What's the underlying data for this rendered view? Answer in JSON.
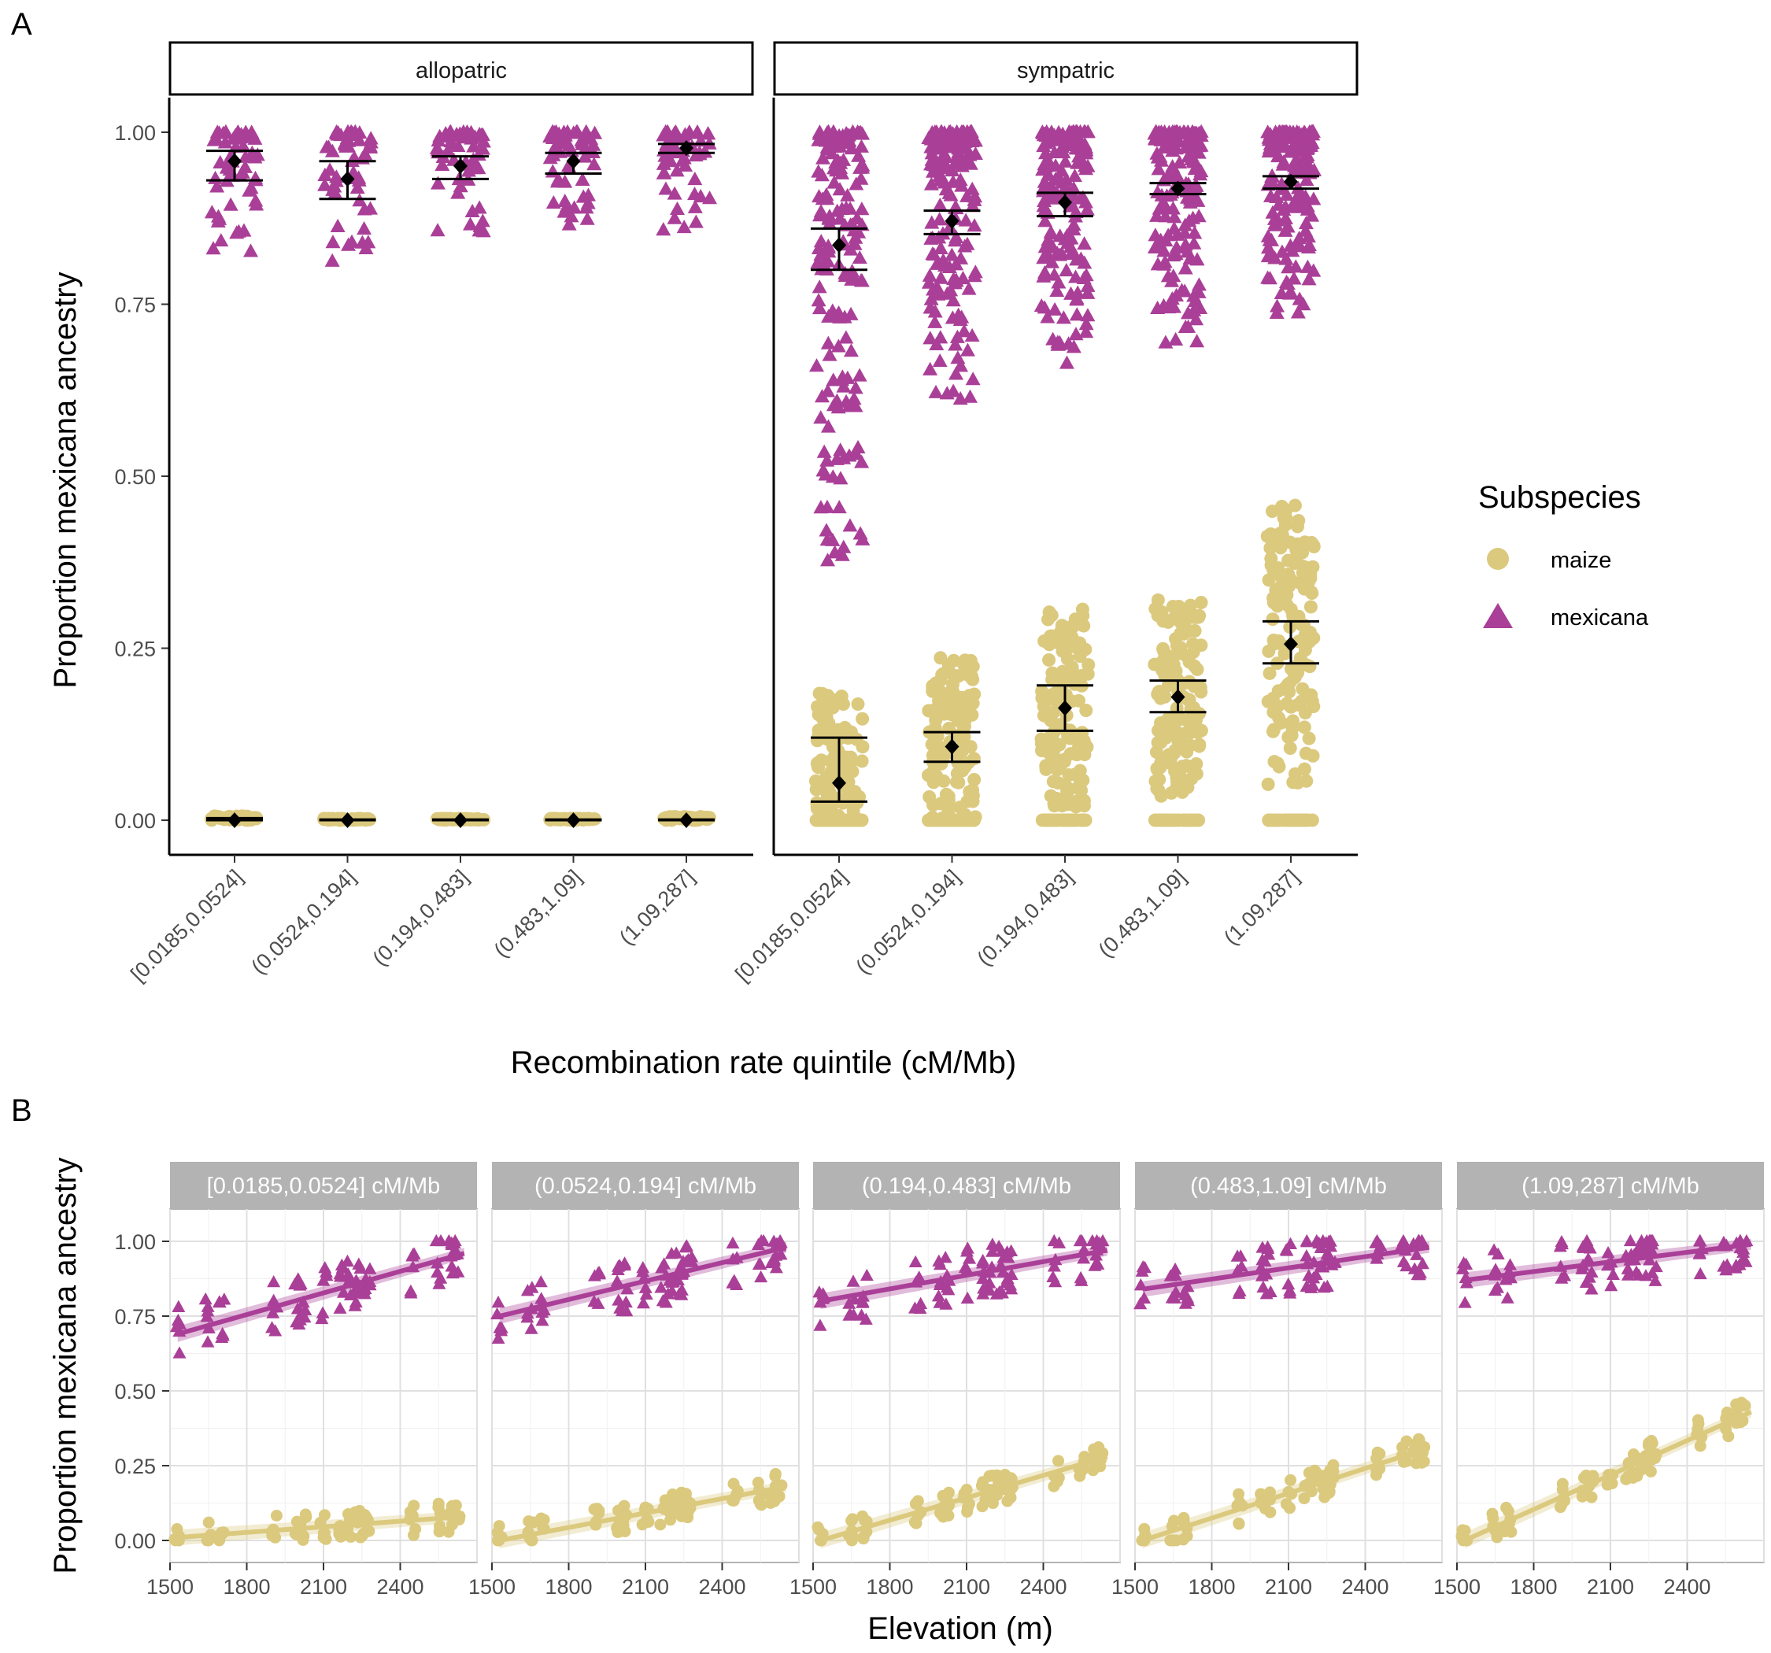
{
  "panel_a": {
    "letter": "A"
  },
  "panel_b": {
    "letter": "B"
  },
  "legend": {
    "title": "Subspecies",
    "items": [
      {
        "label": "maize",
        "shape": "circle",
        "color": "#DBC97E"
      },
      {
        "label": "mexicana",
        "shape": "triangle",
        "color": "#AA3F98"
      }
    ]
  },
  "colors": {
    "maize": "#DBC97E",
    "mexicana": "#AA3F98",
    "summary": "#000000",
    "strip_b": "#B3B3B3"
  },
  "chart_data": [
    {
      "type": "scatter",
      "xlabel": "Recombination rate quintile (cM/Mb)",
      "ylabel": "Proportion mexicana ancestry",
      "ylim": [
        0,
        1
      ],
      "y_ticks": [
        "0.00",
        "0.25",
        "0.50",
        "0.75",
        "1.00"
      ],
      "categories": [
        "[0.0185,0.0524]",
        "(0.0524,0.194]",
        "(0.194,0.483]",
        "(0.483,1.09]",
        "(1.09,287]"
      ],
      "facets": [
        {
          "name": "allopatric",
          "series": [
            {
              "name": "maize",
              "means": [
                0.0,
                0.0,
                0.0,
                0.0,
                0.0
              ],
              "ci_low": [
                0.0,
                0.0,
                0.0,
                0.0,
                0.0
              ],
              "ci_high": [
                0.003,
                0.001,
                0.001,
                0.001,
                0.001
              ],
              "spread_low": [
                0.0,
                0.0,
                0.0,
                0.0,
                0.0
              ],
              "spread_high": [
                0.012,
                0.005,
                0.005,
                0.005,
                0.01
              ]
            },
            {
              "name": "mexicana",
              "means": [
                0.958,
                0.932,
                0.951,
                0.958,
                0.977
              ],
              "ci_low": [
                0.93,
                0.903,
                0.932,
                0.94,
                0.97
              ],
              "ci_high": [
                0.973,
                0.958,
                0.965,
                0.97,
                0.983
              ],
              "spread_low": [
                0.82,
                0.79,
                0.85,
                0.86,
                0.85
              ],
              "spread_high": [
                1.0,
                1.0,
                1.0,
                1.0,
                1.0
              ]
            }
          ]
        },
        {
          "name": "sympatric",
          "series": [
            {
              "name": "maize",
              "means": [
                0.054,
                0.107,
                0.163,
                0.179,
                0.256
              ],
              "ci_low": [
                0.027,
                0.085,
                0.13,
                0.157,
                0.228
              ],
              "ci_high": [
                0.12,
                0.128,
                0.196,
                0.203,
                0.289
              ],
              "spread_low": [
                0.0,
                0.0,
                0.0,
                0.0,
                0.0
              ],
              "spread_high": [
                0.29,
                0.3,
                0.32,
                0.32,
                0.46
              ]
            },
            {
              "name": "mexicana",
              "means": [
                0.836,
                0.871,
                0.898,
                0.918,
                0.928
              ],
              "ci_low": [
                0.8,
                0.852,
                0.878,
                0.91,
                0.918
              ],
              "ci_high": [
                0.86,
                0.886,
                0.912,
                0.926,
                0.936
              ],
              "spread_low": [
                0.37,
                0.61,
                0.66,
                0.69,
                0.73
              ],
              "spread_high": [
                1.0,
                1.0,
                1.0,
                1.0,
                1.0
              ]
            }
          ]
        }
      ]
    },
    {
      "type": "scatter",
      "xlabel": "Elevation (m)",
      "ylabel": "Proportion mexicana ancestry",
      "xlim": [
        1500,
        2700
      ],
      "ylim": [
        0,
        1
      ],
      "x_ticks": [
        "1500",
        "1800",
        "2100",
        "2400"
      ],
      "y_ticks": [
        "0.00",
        "0.25",
        "0.50",
        "0.75",
        "1.00"
      ],
      "facets": [
        {
          "name": "[0.0185,0.0524] cM/Mb",
          "series": [
            {
              "name": "maize",
              "fit": [
                [
                  1530,
                  0.01
                ],
                [
                  2650,
                  0.08
                ]
              ]
            },
            {
              "name": "mexicana",
              "fit": [
                [
                  1530,
                  0.69
                ],
                [
                  2650,
                  0.96
                ]
              ]
            }
          ]
        },
        {
          "name": "(0.0524,0.194] cM/Mb",
          "series": [
            {
              "name": "maize",
              "fit": [
                [
                  1530,
                  0.0
                ],
                [
                  2650,
                  0.18
                ]
              ]
            },
            {
              "name": "mexicana",
              "fit": [
                [
                  1530,
                  0.75
                ],
                [
                  2650,
                  0.98
                ]
              ]
            }
          ]
        },
        {
          "name": "(0.194,0.483] cM/Mb",
          "series": [
            {
              "name": "maize",
              "fit": [
                [
                  1530,
                  0.0
                ],
                [
                  2650,
                  0.28
                ]
              ]
            },
            {
              "name": "mexicana",
              "fit": [
                [
                  1530,
                  0.8
                ],
                [
                  2650,
                  0.97
                ]
              ]
            }
          ]
        },
        {
          "name": "(0.483,1.09] cM/Mb",
          "series": [
            {
              "name": "maize",
              "fit": [
                [
                  1530,
                  0.0
                ],
                [
                  2650,
                  0.31
                ]
              ]
            },
            {
              "name": "mexicana",
              "fit": [
                [
                  1530,
                  0.84
                ],
                [
                  2650,
                  0.98
                ]
              ]
            }
          ]
        },
        {
          "name": "(1.09,287] cM/Mb",
          "series": [
            {
              "name": "maize",
              "fit": [
                [
                  1530,
                  0.0
                ],
                [
                  2650,
                  0.43
                ]
              ]
            },
            {
              "name": "mexicana",
              "fit": [
                [
                  1530,
                  0.87
                ],
                [
                  2650,
                  0.99
                ]
              ]
            }
          ]
        }
      ],
      "elevation_sites": [
        1530,
        1650,
        1700,
        1910,
        2000,
        2020,
        2100,
        2170,
        2200,
        2230,
        2250,
        2270,
        2450,
        2550,
        2600,
        2620
      ]
    }
  ]
}
